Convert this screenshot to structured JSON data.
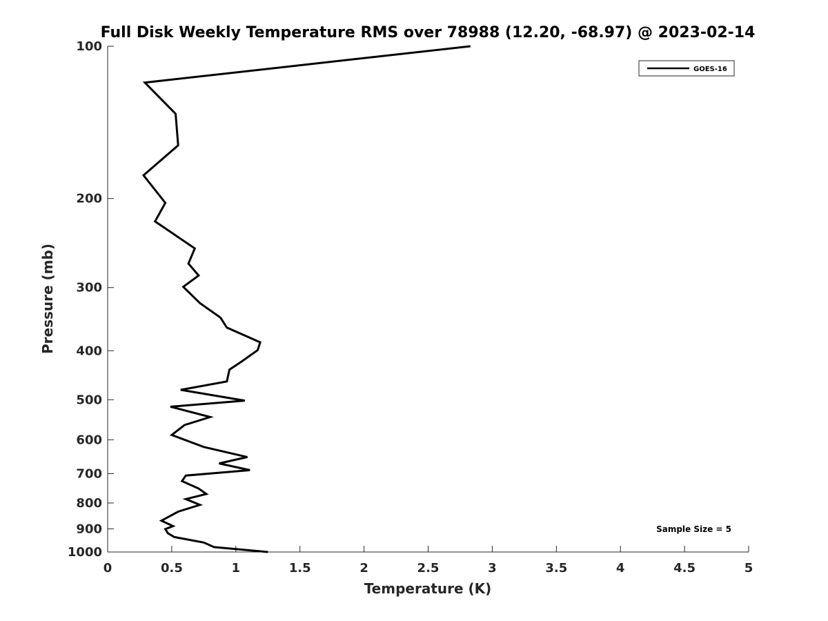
{
  "chart_data": {
    "type": "line",
    "title": "Full Disk Weekly Temperature RMS over 78988 (12.20, -68.97) @ 2023-02-14",
    "xlabel": "Temperature (K)",
    "ylabel": "Pressure (mb)",
    "xlim": [
      0,
      5
    ],
    "ylim": [
      100,
      1000
    ],
    "yscale": "log",
    "yreversed": true,
    "x_ticks": [
      0,
      0.5,
      1,
      1.5,
      2,
      2.5,
      3,
      3.5,
      4,
      4.5,
      5
    ],
    "x_tick_labels": [
      "0",
      "0.5",
      "1",
      "1.5",
      "2",
      "2.5",
      "3",
      "3.5",
      "4",
      "4.5",
      "5"
    ],
    "y_ticks": [
      100,
      200,
      300,
      400,
      500,
      600,
      700,
      800,
      900,
      1000
    ],
    "y_tick_labels": [
      "100",
      "200",
      "300",
      "400",
      "500",
      "600",
      "700",
      "800",
      "900",
      "1000"
    ],
    "grid": false,
    "legend_position": "top-right",
    "series": [
      {
        "name": "GOES-16",
        "color": "#000000",
        "points": [
          [
            2.83,
            100
          ],
          [
            0.29,
            118
          ],
          [
            0.53,
            136
          ],
          [
            0.55,
            157
          ],
          [
            0.28,
            180
          ],
          [
            0.45,
            204
          ],
          [
            0.37,
            222
          ],
          [
            0.68,
            251
          ],
          [
            0.63,
            269
          ],
          [
            0.71,
            284
          ],
          [
            0.59,
            299
          ],
          [
            0.72,
            322
          ],
          [
            0.88,
            344
          ],
          [
            0.93,
            360
          ],
          [
            1.19,
            385
          ],
          [
            1.17,
            399
          ],
          [
            1.04,
            421
          ],
          [
            0.95,
            436
          ],
          [
            0.93,
            460
          ],
          [
            0.57,
            478
          ],
          [
            1.07,
            502
          ],
          [
            0.49,
            516
          ],
          [
            0.8,
            541
          ],
          [
            0.6,
            561
          ],
          [
            0.5,
            587
          ],
          [
            0.75,
            620
          ],
          [
            1.09,
            649
          ],
          [
            0.87,
            668
          ],
          [
            1.11,
            689
          ],
          [
            0.61,
            706
          ],
          [
            0.58,
            724
          ],
          [
            0.71,
            749
          ],
          [
            0.77,
            768
          ],
          [
            0.61,
            786
          ],
          [
            0.72,
            807
          ],
          [
            0.55,
            832
          ],
          [
            0.42,
            867
          ],
          [
            0.51,
            889
          ],
          [
            0.45,
            901
          ],
          [
            0.47,
            918
          ],
          [
            0.52,
            934
          ],
          [
            0.75,
            958
          ],
          [
            0.83,
            978
          ],
          [
            1.25,
            1000
          ]
        ]
      }
    ],
    "annotations": [
      "Sample Size = 5"
    ]
  }
}
